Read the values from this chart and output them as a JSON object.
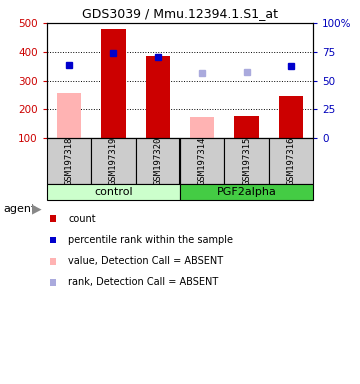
{
  "title": "GDS3039 / Mmu.12394.1.S1_at",
  "samples": [
    "GSM197318",
    "GSM197319",
    "GSM197320",
    "GSM197314",
    "GSM197315",
    "GSM197316"
  ],
  "groups": [
    "control",
    "control",
    "control",
    "PGF2alpha",
    "PGF2alpha",
    "PGF2alpha"
  ],
  "count_values": [
    null,
    480,
    385,
    null,
    175,
    245
  ],
  "count_values_absent": [
    255,
    null,
    null,
    173,
    null,
    null
  ],
  "percentile_rank_left": [
    355,
    395,
    382,
    null,
    null,
    350
  ],
  "percentile_rank_absent_left": [
    null,
    null,
    null,
    325,
    330,
    null
  ],
  "ylim_left": [
    100,
    500
  ],
  "ylim_right": [
    0,
    100
  ],
  "yticks_left": [
    100,
    200,
    300,
    400,
    500
  ],
  "yticks_right": [
    0,
    25,
    50,
    75,
    100
  ],
  "bar_color_red": "#cc0000",
  "bar_color_pink": "#ffb3b3",
  "dot_color_blue": "#0000cc",
  "dot_color_lightblue": "#aaaadd",
  "legend_items": [
    {
      "color": "#cc0000",
      "label": "count"
    },
    {
      "color": "#0000cc",
      "label": "percentile rank within the sample"
    },
    {
      "color": "#ffb3b3",
      "label": "value, Detection Call = ABSENT"
    },
    {
      "color": "#aaaadd",
      "label": "rank, Detection Call = ABSENT"
    }
  ],
  "ylabel_left_color": "#cc0000",
  "ylabel_right_color": "#0000bb",
  "control_color_light": "#ccffcc",
  "control_color_dark": "#44cc44",
  "sample_box_color": "#cccccc",
  "count_base": 100,
  "percentile_scale": 4,
  "bar_width": 0.55
}
